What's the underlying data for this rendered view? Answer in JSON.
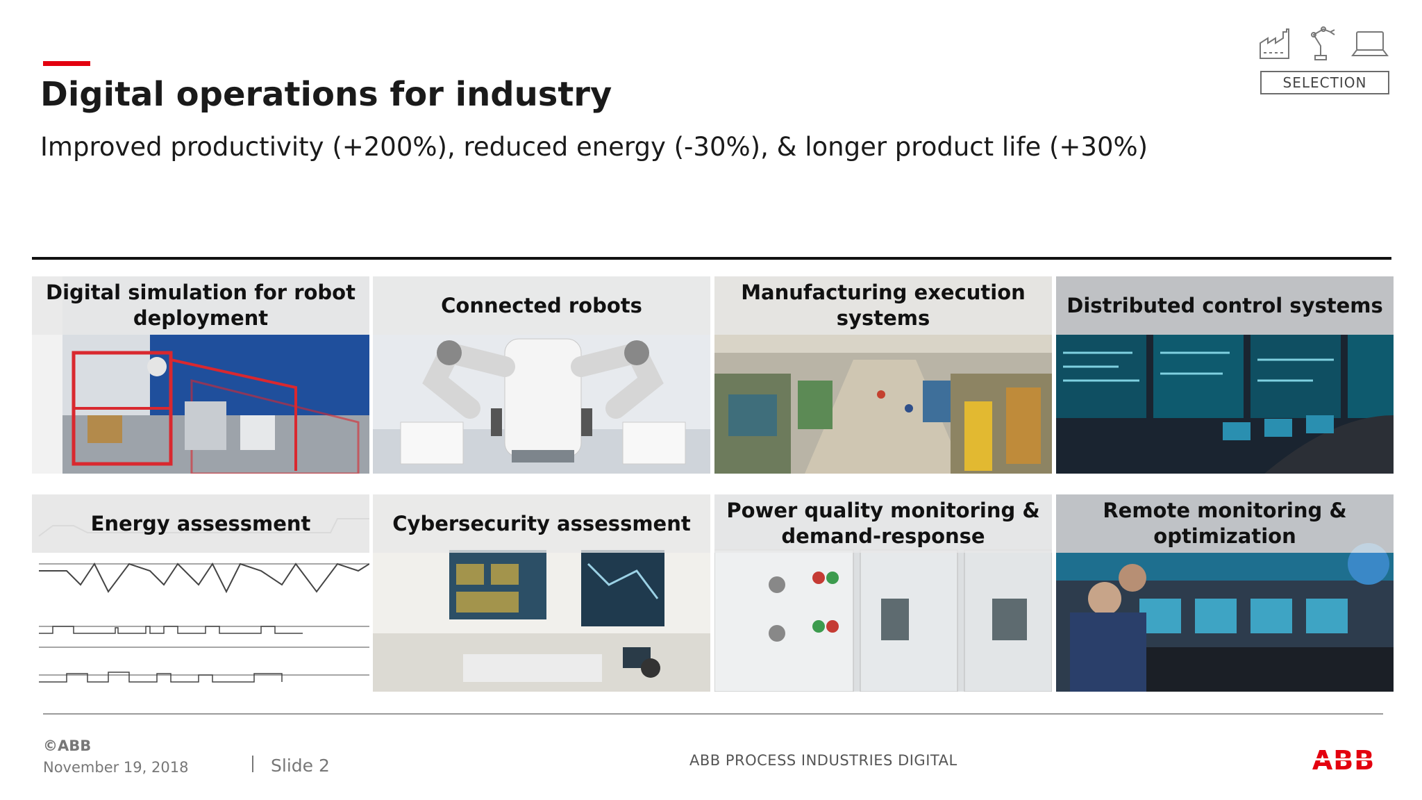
{
  "header": {
    "title": "Digital operations for industry",
    "subtitle": "Improved productivity (+200%), reduced energy (-30%), & longer product life (+30%)",
    "accent_color": "#e3000f"
  },
  "selection": {
    "icons": [
      "factory-icon",
      "robot-arm-icon",
      "laptop-icon"
    ],
    "label": "SELECTION"
  },
  "tiles": [
    {
      "label": "Digital simulation for robot deployment"
    },
    {
      "label": "Connected robots"
    },
    {
      "label": "Manufacturing execution systems"
    },
    {
      "label": "Distributed control systems"
    },
    {
      "label": "Energy assessment"
    },
    {
      "label": "Cybersecurity assessment"
    },
    {
      "label": "Power quality monitoring & demand-response"
    },
    {
      "label": "Remote monitoring & optimization"
    }
  ],
  "footer": {
    "copyright": "©ABB",
    "date": "November 19, 2018",
    "slide": "Slide 2",
    "center_text": "ABB PROCESS INDUSTRIES DIGITAL",
    "logo_text": "ABB",
    "logo_color": "#e3000f"
  }
}
